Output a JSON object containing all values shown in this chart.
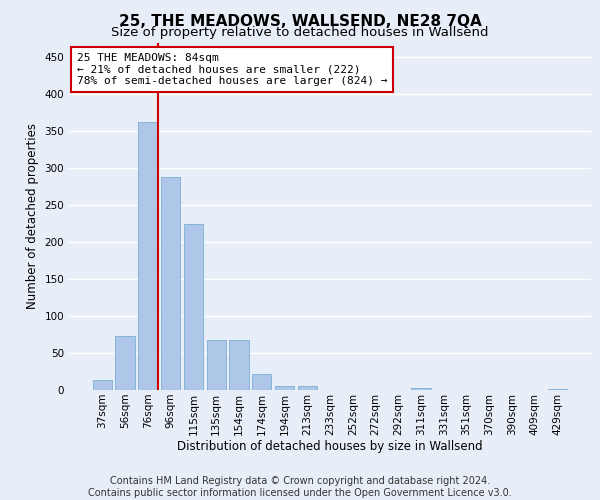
{
  "title": "25, THE MEADOWS, WALLSEND, NE28 7QA",
  "subtitle": "Size of property relative to detached houses in Wallsend",
  "xlabel": "Distribution of detached houses by size in Wallsend",
  "ylabel": "Number of detached properties",
  "footer_line1": "Contains HM Land Registry data © Crown copyright and database right 2024.",
  "footer_line2": "Contains public sector information licensed under the Open Government Licence v3.0.",
  "bar_labels": [
    "37sqm",
    "56sqm",
    "76sqm",
    "96sqm",
    "115sqm",
    "135sqm",
    "154sqm",
    "174sqm",
    "194sqm",
    "213sqm",
    "233sqm",
    "252sqm",
    "272sqm",
    "292sqm",
    "311sqm",
    "331sqm",
    "351sqm",
    "370sqm",
    "390sqm",
    "409sqm",
    "429sqm"
  ],
  "bar_values": [
    13,
    73,
    362,
    288,
    224,
    68,
    68,
    21,
    5,
    5,
    0,
    0,
    0,
    0,
    3,
    0,
    0,
    0,
    0,
    0,
    2
  ],
  "bar_color": "#aec6e8",
  "bar_edgecolor": "#7aadd4",
  "property_label": "25 THE MEADOWS: 84sqm",
  "annotation_line1": "← 21% of detached houses are smaller (222)",
  "annotation_line2": "78% of semi-detached houses are larger (824) →",
  "vline_color": "#cc0000",
  "annotation_box_color": "#ffffff",
  "annotation_box_edgecolor": "#cc0000",
  "ylim": [
    0,
    470
  ],
  "yticks": [
    0,
    50,
    100,
    150,
    200,
    250,
    300,
    350,
    400,
    450
  ],
  "background_color": "#e8eef7",
  "grid_color": "#ffffff",
  "title_fontsize": 11,
  "subtitle_fontsize": 9.5,
  "axis_label_fontsize": 8.5,
  "tick_fontsize": 7.5,
  "annotation_fontsize": 8,
  "footer_fontsize": 7
}
